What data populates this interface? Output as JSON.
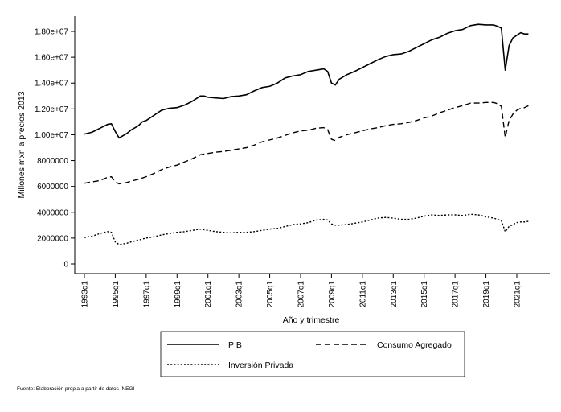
{
  "chart_data": {
    "type": "line",
    "title": "",
    "xlabel": "Año y trimestre",
    "ylabel": "Millones mxn a precios 2013",
    "source": "Fuente: Elaboración propia a partir de datos INEGI",
    "grid": false,
    "legend_position": "bottom",
    "ylim": [
      0,
      19000000
    ],
    "y_ticks": [
      0,
      2000000,
      4000000,
      6000000,
      8000000,
      10000000,
      12000000,
      14000000,
      16000000,
      18000000
    ],
    "y_tick_labels": [
      "0",
      "2000000",
      "4000000",
      "6000000",
      "8000000",
      "1.00e+07",
      "1.20e+07",
      "1.40e+07",
      "1.60e+07",
      "1.80e+07"
    ],
    "x_ticks": [
      1993,
      1995,
      1997,
      1999,
      2001,
      2003,
      2005,
      2007,
      2009,
      2011,
      2013,
      2015,
      2017,
      2019,
      2021
    ],
    "x_tick_labels": [
      "1993q1",
      "1995q1",
      "1997q1",
      "1999q1",
      "2001q1",
      "2003q1",
      "2005q1",
      "2007q1",
      "2009q1",
      "2011q1",
      "2013q1",
      "2015q1",
      "2017q1",
      "2019q1",
      "2021q1"
    ],
    "x_range": [
      1993,
      2022.25
    ],
    "series": [
      {
        "name": "PIB",
        "style": "solid",
        "points": [
          [
            1993,
            10050000
          ],
          [
            1993.5,
            10200000
          ],
          [
            1994,
            10500000
          ],
          [
            1994.5,
            10800000
          ],
          [
            1994.75,
            10850000
          ],
          [
            1995,
            10250000
          ],
          [
            1995.25,
            9750000
          ],
          [
            1995.75,
            10100000
          ],
          [
            1996,
            10350000
          ],
          [
            1996.5,
            10700000
          ],
          [
            1996.75,
            11000000
          ],
          [
            1997,
            11100000
          ],
          [
            1997.5,
            11500000
          ],
          [
            1998,
            11900000
          ],
          [
            1998.5,
            12050000
          ],
          [
            1999,
            12100000
          ],
          [
            1999.5,
            12300000
          ],
          [
            2000,
            12600000
          ],
          [
            2000.5,
            13000000
          ],
          [
            2000.75,
            13000000
          ],
          [
            2001,
            12900000
          ],
          [
            2001.5,
            12850000
          ],
          [
            2002,
            12800000
          ],
          [
            2002.5,
            12950000
          ],
          [
            2003,
            13000000
          ],
          [
            2003.5,
            13100000
          ],
          [
            2004,
            13400000
          ],
          [
            2004.5,
            13650000
          ],
          [
            2005,
            13750000
          ],
          [
            2005.5,
            14000000
          ],
          [
            2006,
            14400000
          ],
          [
            2006.5,
            14550000
          ],
          [
            2007,
            14650000
          ],
          [
            2007.5,
            14900000
          ],
          [
            2008,
            15000000
          ],
          [
            2008.5,
            15100000
          ],
          [
            2008.75,
            14900000
          ],
          [
            2009,
            14000000
          ],
          [
            2009.25,
            13850000
          ],
          [
            2009.5,
            14300000
          ],
          [
            2010,
            14650000
          ],
          [
            2010.5,
            14900000
          ],
          [
            2011,
            15200000
          ],
          [
            2011.5,
            15500000
          ],
          [
            2012,
            15800000
          ],
          [
            2012.5,
            16050000
          ],
          [
            2013,
            16200000
          ],
          [
            2013.5,
            16250000
          ],
          [
            2014,
            16450000
          ],
          [
            2014.5,
            16750000
          ],
          [
            2015,
            17050000
          ],
          [
            2015.5,
            17350000
          ],
          [
            2016,
            17550000
          ],
          [
            2016.5,
            17850000
          ],
          [
            2017,
            18050000
          ],
          [
            2017.5,
            18150000
          ],
          [
            2018,
            18450000
          ],
          [
            2018.5,
            18550000
          ],
          [
            2019,
            18500000
          ],
          [
            2019.5,
            18500000
          ],
          [
            2019.75,
            18400000
          ],
          [
            2020,
            18250000
          ],
          [
            2020.25,
            15000000
          ],
          [
            2020.5,
            16900000
          ],
          [
            2020.75,
            17500000
          ],
          [
            2021,
            17700000
          ],
          [
            2021.25,
            17900000
          ],
          [
            2021.5,
            17800000
          ],
          [
            2021.75,
            17800000
          ]
        ]
      },
      {
        "name": "Consumo Agregado",
        "style": "dashed",
        "points": [
          [
            1993,
            6250000
          ],
          [
            1993.5,
            6350000
          ],
          [
            1994,
            6450000
          ],
          [
            1994.5,
            6700000
          ],
          [
            1994.75,
            6750000
          ],
          [
            1995,
            6350000
          ],
          [
            1995.25,
            6200000
          ],
          [
            1995.75,
            6300000
          ],
          [
            1996,
            6400000
          ],
          [
            1996.5,
            6550000
          ],
          [
            1997,
            6750000
          ],
          [
            1997.5,
            7000000
          ],
          [
            1998,
            7300000
          ],
          [
            1998.5,
            7500000
          ],
          [
            1999,
            7650000
          ],
          [
            1999.5,
            7900000
          ],
          [
            2000,
            8150000
          ],
          [
            2000.5,
            8450000
          ],
          [
            2001,
            8550000
          ],
          [
            2001.5,
            8650000
          ],
          [
            2002,
            8700000
          ],
          [
            2002.5,
            8800000
          ],
          [
            2003,
            8900000
          ],
          [
            2003.5,
            9000000
          ],
          [
            2004,
            9200000
          ],
          [
            2004.5,
            9450000
          ],
          [
            2005,
            9600000
          ],
          [
            2005.5,
            9750000
          ],
          [
            2006,
            9950000
          ],
          [
            2006.5,
            10150000
          ],
          [
            2007,
            10300000
          ],
          [
            2007.5,
            10350000
          ],
          [
            2008,
            10500000
          ],
          [
            2008.5,
            10550000
          ],
          [
            2008.75,
            10400000
          ],
          [
            2009,
            9650000
          ],
          [
            2009.25,
            9550000
          ],
          [
            2009.5,
            9800000
          ],
          [
            2010,
            10000000
          ],
          [
            2010.5,
            10150000
          ],
          [
            2011,
            10300000
          ],
          [
            2011.5,
            10450000
          ],
          [
            2012,
            10550000
          ],
          [
            2012.5,
            10700000
          ],
          [
            2013,
            10800000
          ],
          [
            2013.5,
            10850000
          ],
          [
            2014,
            10950000
          ],
          [
            2014.5,
            11100000
          ],
          [
            2015,
            11300000
          ],
          [
            2015.5,
            11450000
          ],
          [
            2016,
            11700000
          ],
          [
            2016.5,
            11900000
          ],
          [
            2017,
            12100000
          ],
          [
            2017.5,
            12250000
          ],
          [
            2018,
            12450000
          ],
          [
            2018.5,
            12450000
          ],
          [
            2019,
            12500000
          ],
          [
            2019.5,
            12500000
          ],
          [
            2019.75,
            12400000
          ],
          [
            2020,
            12200000
          ],
          [
            2020.25,
            9800000
          ],
          [
            2020.5,
            11100000
          ],
          [
            2020.75,
            11600000
          ],
          [
            2021,
            11900000
          ],
          [
            2021.25,
            12050000
          ],
          [
            2021.5,
            12100000
          ],
          [
            2021.75,
            12250000
          ]
        ]
      },
      {
        "name": "Inversión Privada",
        "style": "dotted",
        "points": [
          [
            1993,
            2050000
          ],
          [
            1993.5,
            2150000
          ],
          [
            1994,
            2350000
          ],
          [
            1994.5,
            2500000
          ],
          [
            1994.75,
            2450000
          ],
          [
            1995,
            1700000
          ],
          [
            1995.25,
            1500000
          ],
          [
            1995.75,
            1600000
          ],
          [
            1996,
            1700000
          ],
          [
            1996.5,
            1850000
          ],
          [
            1997,
            2000000
          ],
          [
            1997.5,
            2100000
          ],
          [
            1998,
            2250000
          ],
          [
            1998.5,
            2350000
          ],
          [
            1999,
            2450000
          ],
          [
            1999.5,
            2500000
          ],
          [
            2000,
            2600000
          ],
          [
            2000.5,
            2700000
          ],
          [
            2001,
            2600000
          ],
          [
            2001.5,
            2500000
          ],
          [
            2002,
            2450000
          ],
          [
            2002.5,
            2400000
          ],
          [
            2003,
            2450000
          ],
          [
            2003.5,
            2450000
          ],
          [
            2004,
            2500000
          ],
          [
            2004.5,
            2600000
          ],
          [
            2005,
            2700000
          ],
          [
            2005.5,
            2750000
          ],
          [
            2006,
            2900000
          ],
          [
            2006.5,
            3050000
          ],
          [
            2007,
            3100000
          ],
          [
            2007.5,
            3200000
          ],
          [
            2008,
            3400000
          ],
          [
            2008.5,
            3450000
          ],
          [
            2008.75,
            3400000
          ],
          [
            2009,
            3100000
          ],
          [
            2009.25,
            3000000
          ],
          [
            2009.5,
            3000000
          ],
          [
            2010,
            3050000
          ],
          [
            2010.5,
            3150000
          ],
          [
            2011,
            3250000
          ],
          [
            2011.5,
            3400000
          ],
          [
            2012,
            3550000
          ],
          [
            2012.5,
            3600000
          ],
          [
            2013,
            3550000
          ],
          [
            2013.5,
            3450000
          ],
          [
            2014,
            3450000
          ],
          [
            2014.5,
            3550000
          ],
          [
            2015,
            3700000
          ],
          [
            2015.5,
            3800000
          ],
          [
            2016,
            3750000
          ],
          [
            2016.5,
            3800000
          ],
          [
            2017,
            3800000
          ],
          [
            2017.5,
            3750000
          ],
          [
            2018,
            3850000
          ],
          [
            2018.5,
            3800000
          ],
          [
            2019,
            3650000
          ],
          [
            2019.5,
            3550000
          ],
          [
            2019.75,
            3450000
          ],
          [
            2020,
            3350000
          ],
          [
            2020.25,
            2500000
          ],
          [
            2020.5,
            2900000
          ],
          [
            2020.75,
            3050000
          ],
          [
            2021,
            3200000
          ],
          [
            2021.25,
            3250000
          ],
          [
            2021.5,
            3250000
          ],
          [
            2021.75,
            3300000
          ]
        ]
      }
    ]
  }
}
